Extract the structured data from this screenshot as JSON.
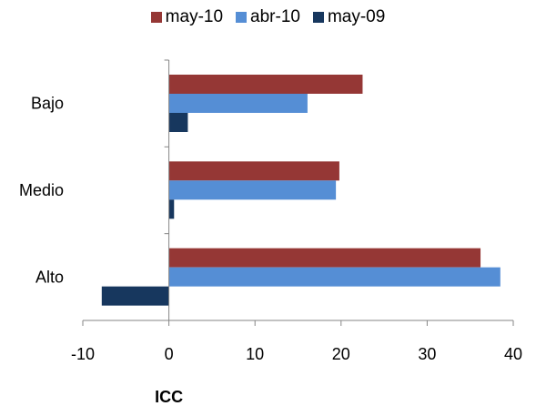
{
  "chart_data": {
    "type": "bar",
    "orientation": "horizontal",
    "categories": [
      "Alto",
      "Medio",
      "Bajo"
    ],
    "series": [
      {
        "name": "may-10",
        "color": "#953735",
        "values": [
          36.2,
          19.8,
          22.5
        ]
      },
      {
        "name": "abr-10",
        "color": "#558ED5",
        "values": [
          38.5,
          19.4,
          16.1
        ]
      },
      {
        "name": "may-09",
        "color": "#17375E",
        "values": [
          -7.8,
          0.6,
          2.2
        ]
      }
    ],
    "xlabel": "ICC",
    "ylabel": "",
    "xlim": [
      -10,
      40
    ],
    "x_ticks": [
      -10,
      0,
      10,
      20,
      30,
      40
    ],
    "grid": false,
    "legend_position": "top"
  }
}
